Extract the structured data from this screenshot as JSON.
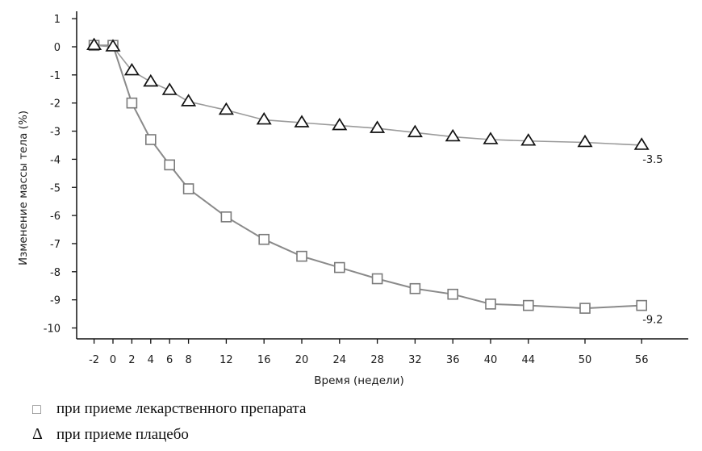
{
  "chart_data": {
    "type": "line",
    "xlabel": "Время (недели)",
    "ylabel": "Изменение массы тела (%)",
    "x_ticks": [
      -2,
      0,
      2,
      4,
      6,
      8,
      12,
      16,
      20,
      24,
      28,
      32,
      36,
      40,
      44,
      50,
      56
    ],
    "y_ticks": [
      1,
      0,
      -1,
      -2,
      -3,
      -4,
      -5,
      -6,
      -7,
      -8,
      -9,
      -10
    ],
    "ylim": [
      -10.3,
      1.2
    ],
    "grid": false,
    "series": [
      {
        "name": "при приеме лекарственного препарата",
        "marker": "square",
        "color": "#7a7a7a",
        "x": [
          -2,
          0,
          2,
          4,
          6,
          8,
          12,
          16,
          20,
          24,
          28,
          32,
          36,
          40,
          44,
          50,
          56
        ],
        "y": [
          0.05,
          0.05,
          -2.0,
          -3.3,
          -4.2,
          -5.05,
          -6.05,
          -6.85,
          -7.45,
          -7.85,
          -8.25,
          -8.6,
          -8.8,
          -9.15,
          -9.2,
          -9.3,
          -9.2
        ],
        "end_label": "-9.2"
      },
      {
        "name": "при приеме плацебо",
        "marker": "triangle",
        "color": "#111111",
        "x": [
          -2,
          0,
          2,
          4,
          6,
          8,
          12,
          16,
          20,
          24,
          28,
          32,
          36,
          40,
          44,
          50,
          56
        ],
        "y": [
          0.05,
          0.0,
          -0.85,
          -1.25,
          -1.55,
          -1.95,
          -2.25,
          -2.6,
          -2.7,
          -2.8,
          -2.9,
          -3.05,
          -3.2,
          -3.3,
          -3.35,
          -3.4,
          -3.5
        ],
        "end_label": "-3.5"
      }
    ]
  },
  "legend": {
    "drug_symbol": "□",
    "drug_label": "при приеме лекарственного препарата",
    "placebo_symbol": "Δ",
    "placebo_label": "при приеме плацебо"
  }
}
